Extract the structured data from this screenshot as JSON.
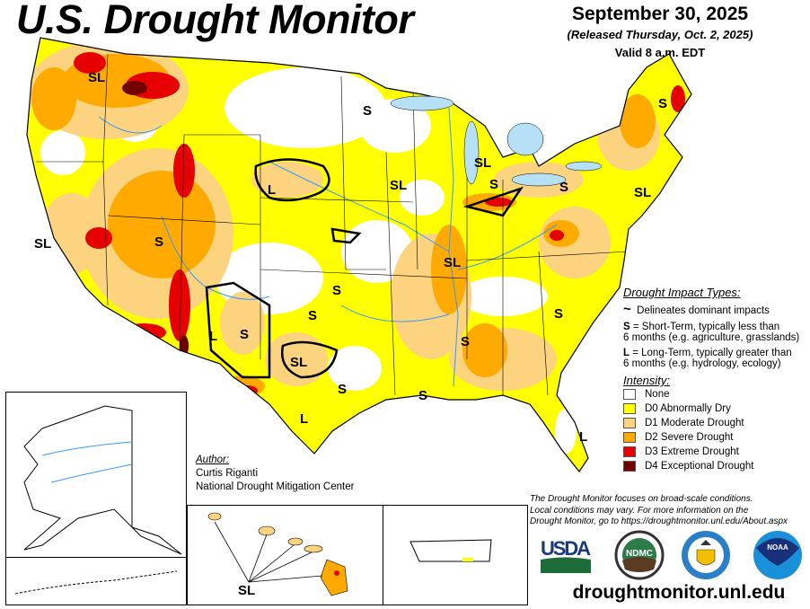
{
  "header": {
    "title": "U.S. Drought Monitor",
    "date": "September 30, 2025",
    "released": "(Released Thursday, Oct. 2, 2025)",
    "valid": "Valid 8 a.m. EDT"
  },
  "map_labels": [
    "SL",
    "S",
    "S",
    "SL",
    "SL",
    "L",
    "SL",
    "S",
    "SL",
    "S",
    "S",
    "SL",
    "S",
    "S",
    "S",
    "S",
    "SL",
    "L",
    "S",
    "S",
    "L",
    "S",
    "L",
    "SL"
  ],
  "legend": {
    "impact_title": "Drought Impact Types:",
    "delineates": "Delineates dominant impacts",
    "short_key": "S",
    "short_text": "= Short-Term, typically less than",
    "short_text2": "6 months (e.g. agriculture, grasslands)",
    "long_key": "L",
    "long_text": "= Long-Term, typically greater than",
    "long_text2": "6 months (e.g. hydrology, ecology)",
    "intensity_title": "Intensity:",
    "categories": [
      {
        "label": "None",
        "color": "#ffffff"
      },
      {
        "label": "D0 Abnormally Dry",
        "color": "#ffff00"
      },
      {
        "label": "D1 Moderate Drought",
        "color": "#fcd37f"
      },
      {
        "label": "D2 Severe Drought",
        "color": "#ffaa00"
      },
      {
        "label": "D3 Extreme Drought",
        "color": "#e60000"
      },
      {
        "label": "D4 Exceptional Drought",
        "color": "#730000"
      }
    ]
  },
  "author": {
    "heading": "Author:",
    "name": "Curtis Riganti",
    "org": "National Drought Mitigation Center"
  },
  "note": [
    "The Drought Monitor focuses on broad-scale conditions.",
    "Local conditions may vary. For more information on the",
    "Drought Monitor, go to https://droughtmonitor.unl.edu/About.aspx"
  ],
  "logos": [
    "USDA",
    "NDMC",
    "Department of Commerce",
    "NOAA"
  ],
  "url": "droughtmonitor.unl.edu",
  "hawaii_label": "SL"
}
